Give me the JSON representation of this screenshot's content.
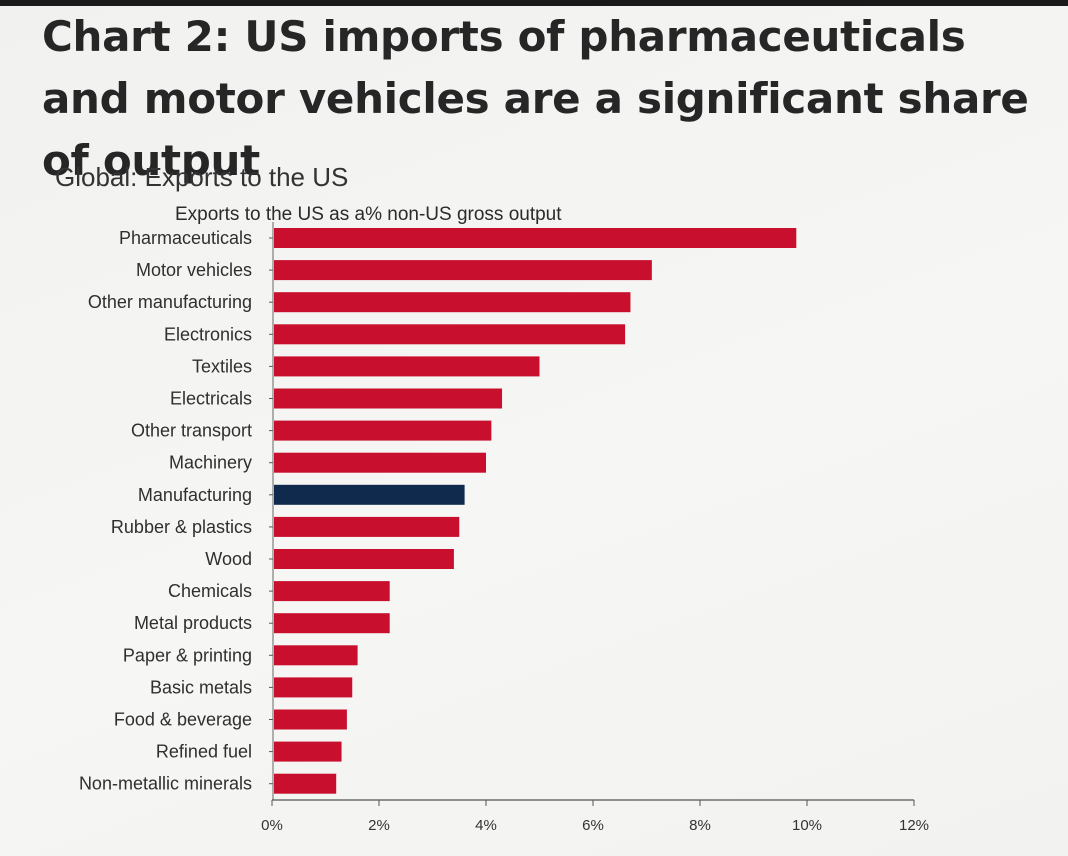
{
  "chart_data": {
    "type": "bar",
    "orientation": "horizontal",
    "title": "Chart 2: US imports of pharmaceuticals and motor vehicles are a significant share of output",
    "subtitle": "Global: Exports to the US",
    "ylabel": "Exports to the US as a% non-US gross output",
    "categories": [
      "Pharmaceuticals",
      "Motor vehicles",
      "Other manufacturing",
      "Electronics",
      "Textiles",
      "Electricals",
      "Other transport",
      "Machinery",
      "Manufacturing",
      "Rubber & plastics",
      "Wood",
      "Chemicals",
      "Metal products",
      "Paper & printing",
      "Basic metals",
      "Food & beverage",
      "Refined fuel",
      "Non-metallic minerals"
    ],
    "values": [
      9.8,
      7.1,
      6.7,
      6.6,
      5.0,
      4.3,
      4.1,
      4.0,
      3.6,
      3.5,
      3.4,
      2.2,
      2.2,
      1.6,
      1.5,
      1.4,
      1.3,
      1.2
    ],
    "highlight": "Manufacturing",
    "colors": {
      "bar": "#c8102e",
      "highlight": "#0f2a4d"
    },
    "xlim": [
      0,
      12
    ],
    "xticks": [
      0,
      2,
      4,
      6,
      8,
      10,
      12
    ],
    "xtick_labels": [
      "0%",
      "2%",
      "4%",
      "6%",
      "8%",
      "10%",
      "12%"
    ],
    "grid": false
  }
}
